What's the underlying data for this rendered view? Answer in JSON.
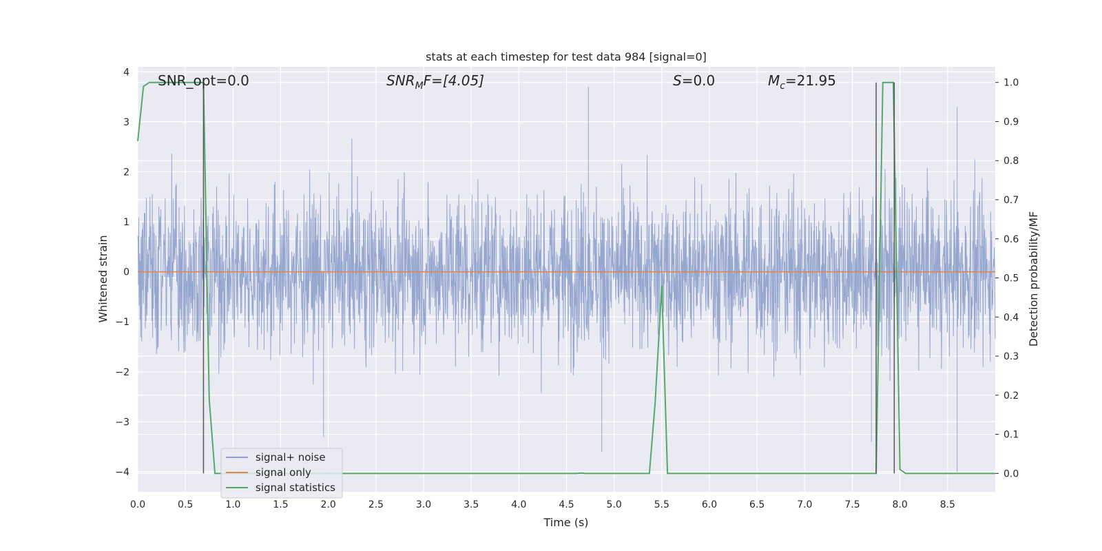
{
  "chart_data": {
    "type": "line",
    "title": "stats at each timestep for test data 984 [signal=0]",
    "xlabel": "Time (s)",
    "ylabel_left": "Whitened strain",
    "ylabel_right": "Detection probability/MF",
    "xlim": [
      0.0,
      9.0
    ],
    "ylim_left": [
      -4.4,
      4.1
    ],
    "ylim_right": [
      -0.047,
      1.04
    ],
    "x_ticks": [
      "0.0",
      "0.5",
      "1.0",
      "1.5",
      "2.0",
      "2.5",
      "3.0",
      "3.5",
      "4.0",
      "4.5",
      "5.0",
      "5.5",
      "6.0",
      "6.5",
      "7.0",
      "7.5",
      "8.0",
      "8.5"
    ],
    "y_left_ticks": [
      "4",
      "3",
      "2",
      "1",
      "0",
      "−1",
      "−2",
      "−3",
      "−4"
    ],
    "y_right_ticks": [
      "1.0",
      "0.9",
      "0.8",
      "0.7",
      "0.6",
      "0.5",
      "0.4",
      "0.3",
      "0.2",
      "0.1",
      "0.0"
    ],
    "grid": true,
    "legend_position": "lower-left",
    "annotations": {
      "snr_opt": "SNR_opt=0.0",
      "snr_mf_prefix": "SNR",
      "snr_mf_sub": "M",
      "snr_mf_suffix": "F=[4.05]",
      "s_label": "S",
      "s_value": "=0.0",
      "mc_prefix": "M",
      "mc_sub": "c",
      "mc_value": "=21.95"
    },
    "series": [
      {
        "name": "signal+ noise",
        "color": "#8da0cb",
        "description_values": "whitened noise, approximately within [-3.6, 3.7]",
        "peak_values": [
          {
            "x": 4.73,
            "y": 3.7
          },
          {
            "x": 4.87,
            "y": -3.6
          },
          {
            "x": 8.6,
            "y": 3.3
          },
          {
            "x": 8.6,
            "y": -4.0
          },
          {
            "x": 1.95,
            "y": -3.3
          },
          {
            "x": 7.7,
            "y": -3.4
          }
        ]
      },
      {
        "name": "signal only",
        "color": "#dd8452",
        "x": [
          0.0,
          9.0
        ],
        "y": [
          0.0,
          0.0
        ]
      },
      {
        "name": "signal statistics",
        "color": "#55a868",
        "axis": "right",
        "x": [
          0.0,
          0.06,
          0.12,
          0.5,
          0.62,
          0.69,
          0.75,
          0.81,
          4.6,
          4.65,
          4.7,
          5.37,
          5.43,
          5.5,
          5.56,
          7.75,
          7.82,
          7.87,
          7.93,
          8.0,
          8.06,
          9.0
        ],
        "y": [
          0.85,
          0.99,
          1.0,
          1.0,
          1.0,
          1.0,
          0.19,
          0.0,
          0.0,
          0.001,
          0.0,
          0.0,
          0.18,
          0.48,
          0.0,
          0.0,
          1.0,
          1.0,
          1.0,
          0.01,
          0.0,
          0.0
        ]
      }
    ],
    "vertical_markers_x": [
      0.69,
      7.75,
      7.94
    ],
    "vertical_marker_color": "#555555"
  },
  "legend": {
    "items": [
      "signal+ noise",
      "signal only",
      "signal statistics"
    ]
  }
}
